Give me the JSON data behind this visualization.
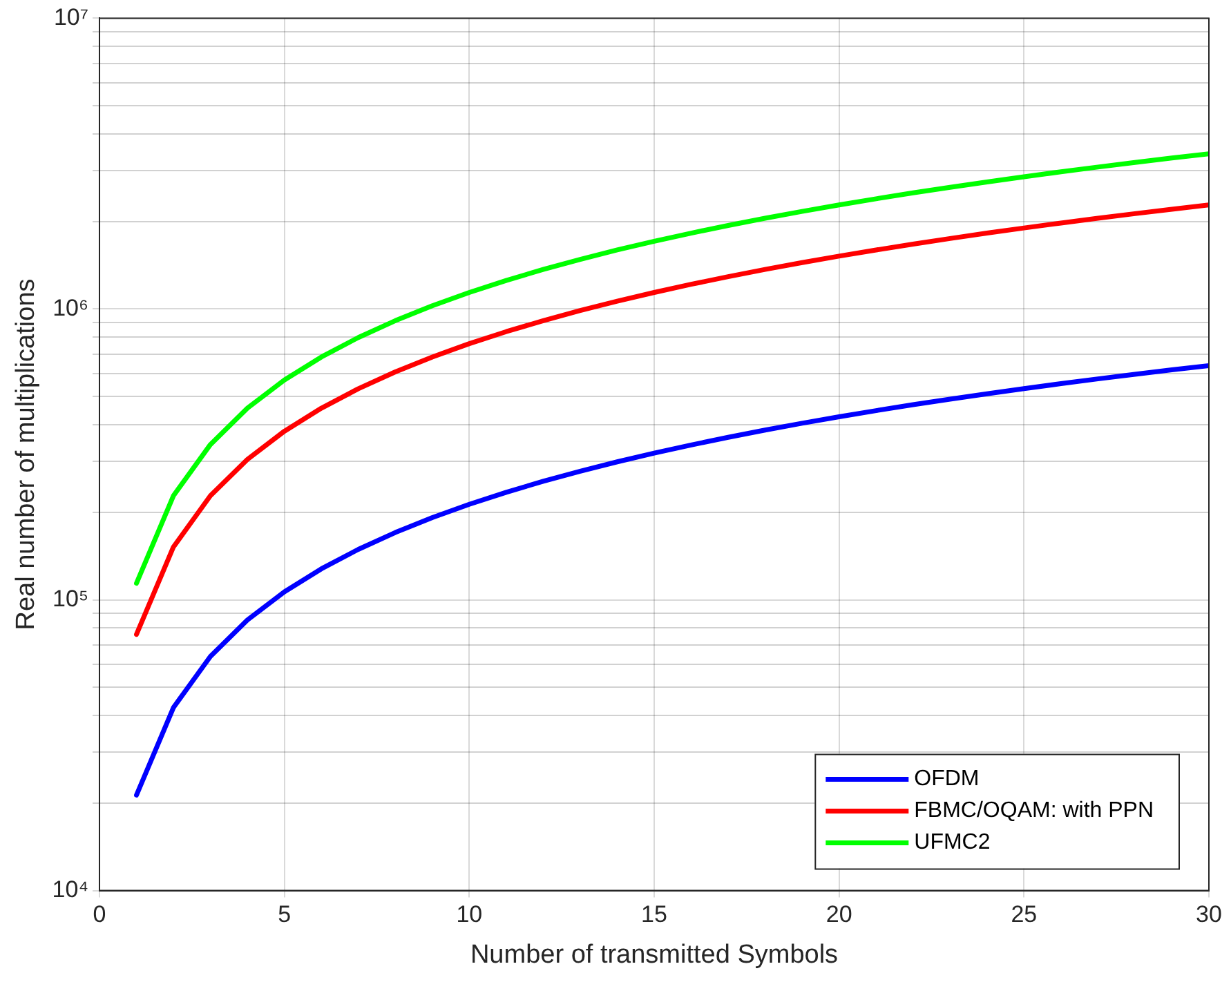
{
  "chart_data": {
    "type": "line",
    "xlabel": "Number of transmitted Symbols",
    "ylabel": "Real number of multiplications",
    "log": "y",
    "grid": true,
    "legend": "bottom right",
    "line_style": "solid",
    "marker": "none",
    "x": [
      1,
      2,
      3,
      4,
      5,
      6,
      7,
      8,
      9,
      10,
      11,
      12,
      13,
      14,
      15,
      16,
      17,
      18,
      19,
      20,
      21,
      22,
      23,
      24,
      25,
      26,
      27,
      28,
      29,
      30
    ],
    "xlim": [
      0,
      30
    ],
    "xticks": [
      0,
      5,
      10,
      15,
      20,
      25,
      30
    ],
    "ylim": [
      10000,
      10000000
    ],
    "yticks": [
      {
        "value": 10000,
        "label": "10⁴"
      },
      {
        "value": 20000,
        "label": null
      },
      {
        "value": 30000,
        "label": null
      },
      {
        "value": 40000,
        "label": null
      },
      {
        "value": 50000,
        "label": null
      },
      {
        "value": 60000,
        "label": null
      },
      {
        "value": 70000,
        "label": null
      },
      {
        "value": 80000,
        "label": null
      },
      {
        "value": 90000,
        "label": null
      },
      {
        "value": 100000,
        "label": "10⁵"
      },
      {
        "value": 200000,
        "label": null
      },
      {
        "value": 300000,
        "label": null
      },
      {
        "value": 400000,
        "label": null
      },
      {
        "value": 500000,
        "label": null
      },
      {
        "value": 600000,
        "label": null
      },
      {
        "value": 700000,
        "label": null
      },
      {
        "value": 800000,
        "label": null
      },
      {
        "value": 900000,
        "label": null
      },
      {
        "value": 1000000,
        "label": "10⁶"
      },
      {
        "value": 2000000,
        "label": null
      },
      {
        "value": 3000000,
        "label": null
      },
      {
        "value": 4000000,
        "label": null
      },
      {
        "value": 5000000,
        "label": null
      },
      {
        "value": 6000000,
        "label": null
      },
      {
        "value": 7000000,
        "label": null
      },
      {
        "value": 8000000,
        "label": null
      },
      {
        "value": 9000000,
        "label": null
      },
      {
        "value": 10000000,
        "label": "10⁷"
      }
    ],
    "series": [
      {
        "name": "OFDM",
        "color": "#0000ff",
        "values": [
          21300,
          42600,
          63900,
          85200,
          106500,
          127800,
          149100,
          170400,
          191700,
          213000,
          234300,
          255600,
          276900,
          298200,
          319500,
          340800,
          362100,
          383400,
          404700,
          426000,
          447300,
          468600,
          489900,
          511200,
          532500,
          553800,
          575100,
          596400,
          617700,
          639000
        ]
      },
      {
        "name": "FBMC/OQAM: with PPN",
        "color": "#ff0000",
        "values": [
          76000,
          152000,
          228000,
          304000,
          380000,
          456000,
          532000,
          608000,
          684000,
          760000,
          836000,
          912000,
          988000,
          1064000,
          1140000,
          1216000,
          1292000,
          1368000,
          1444000,
          1520000,
          1596000,
          1672000,
          1748000,
          1824000,
          1900000,
          1976000,
          2052000,
          2128000,
          2204000,
          2280000
        ]
      },
      {
        "name": "UFMC2",
        "color": "#00ff00",
        "values": [
          114000,
          228000,
          342000,
          456000,
          570000,
          684000,
          798000,
          912000,
          1026000,
          1140000,
          1254000,
          1368000,
          1482000,
          1596000,
          1710000,
          1824000,
          1938000,
          2052000,
          2166000,
          2280000,
          2394000,
          2508000,
          2622000,
          2736000,
          2850000,
          2964000,
          3078000,
          3192000,
          3306000,
          3420000
        ]
      }
    ]
  }
}
